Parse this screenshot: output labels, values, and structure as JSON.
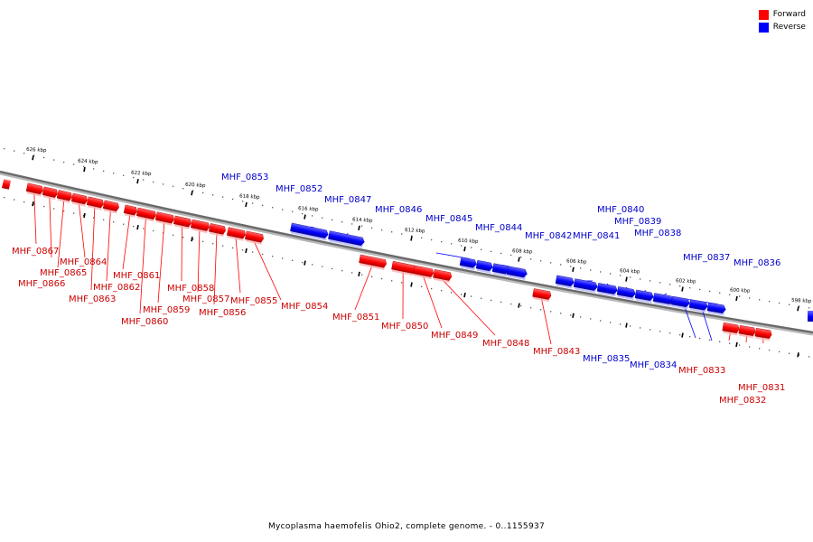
{
  "legend": {
    "forward_label": "Forward",
    "reverse_label": "Reverse",
    "forward_color": "#ff0000",
    "reverse_color": "#0000ff"
  },
  "caption": "Mycoplasma haemofelis Ohio2, complete genome. - 0..1155937",
  "ticks": [
    "626 kbp",
    "624 kbp",
    "622 kbp",
    "620 kbp",
    "618 kbp",
    "616 kbp",
    "614 kbp",
    "612 kbp",
    "610 kbp",
    "608 kbp",
    "606 kbp",
    "604 kbp",
    "602 kbp",
    "600 kbp",
    "598 kbp"
  ],
  "genes": [
    {
      "name": "MHF_0867",
      "strand": "forward"
    },
    {
      "name": "MHF_0866",
      "strand": "forward"
    },
    {
      "name": "MHF_0865",
      "strand": "forward"
    },
    {
      "name": "MHF_0864",
      "strand": "forward"
    },
    {
      "name": "MHF_0863",
      "strand": "forward"
    },
    {
      "name": "MHF_0862",
      "strand": "forward"
    },
    {
      "name": "MHF_0861",
      "strand": "forward"
    },
    {
      "name": "MHF_0860",
      "strand": "forward"
    },
    {
      "name": "MHF_0859",
      "strand": "forward"
    },
    {
      "name": "MHF_0858",
      "strand": "forward"
    },
    {
      "name": "MHF_0857",
      "strand": "forward"
    },
    {
      "name": "MHF_0856",
      "strand": "forward"
    },
    {
      "name": "MHF_0855",
      "strand": "forward"
    },
    {
      "name": "MHF_0854",
      "strand": "forward"
    },
    {
      "name": "MHF_0853",
      "strand": "reverse"
    },
    {
      "name": "MHF_0852",
      "strand": "reverse"
    },
    {
      "name": "MHF_0851",
      "strand": "forward"
    },
    {
      "name": "MHF_0850",
      "strand": "forward"
    },
    {
      "name": "MHF_0849",
      "strand": "forward"
    },
    {
      "name": "MHF_0848",
      "strand": "forward"
    },
    {
      "name": "MHF_0847",
      "strand": "reverse"
    },
    {
      "name": "MHF_0846",
      "strand": "reverse"
    },
    {
      "name": "MHF_0845",
      "strand": "reverse"
    },
    {
      "name": "MHF_0844",
      "strand": "reverse"
    },
    {
      "name": "MHF_0843",
      "strand": "forward"
    },
    {
      "name": "MHF_0842",
      "strand": "reverse"
    },
    {
      "name": "MHF_0841",
      "strand": "reverse"
    },
    {
      "name": "MHF_0840",
      "strand": "reverse"
    },
    {
      "name": "MHF_0839",
      "strand": "reverse"
    },
    {
      "name": "MHF_0838",
      "strand": "reverse"
    },
    {
      "name": "MHF_0837",
      "strand": "reverse"
    },
    {
      "name": "MHF_0836",
      "strand": "reverse"
    },
    {
      "name": "MHF_0835",
      "strand": "reverse"
    },
    {
      "name": "MHF_0834",
      "strand": "reverse"
    },
    {
      "name": "MHF_0833",
      "strand": "forward"
    },
    {
      "name": "MHF_0832",
      "strand": "forward"
    },
    {
      "name": "MHF_0831",
      "strand": "forward"
    }
  ]
}
